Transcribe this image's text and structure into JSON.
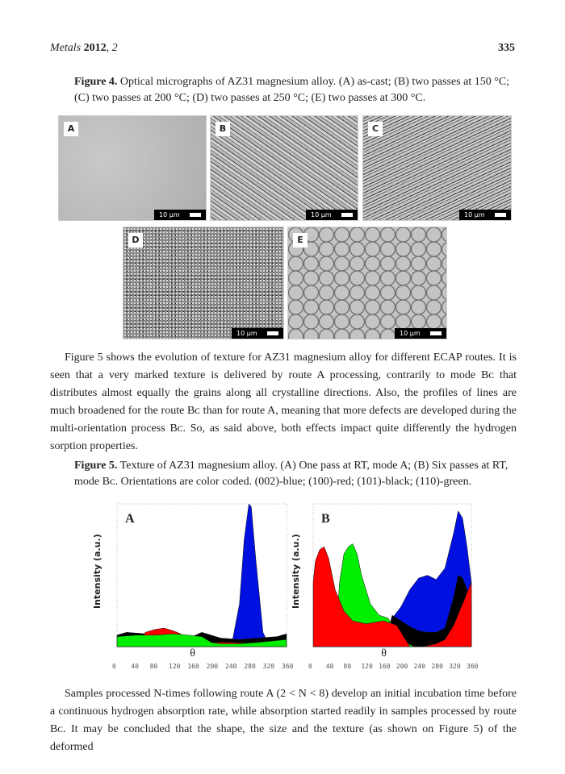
{
  "header": {
    "journal": "Metals",
    "year": "2012",
    "volume": "2",
    "page": "335"
  },
  "figure4": {
    "caption_label": "Figure 4.",
    "caption_text": " Optical micrographs of AZ31 magnesium alloy. (A) as-cast; (B) two passes at 150 °C; (C) two passes at 200 °C; (D) two passes at 250 °C; (E) two passes at 300 °C.",
    "panels": [
      {
        "label": "A",
        "scale": "10 µm"
      },
      {
        "label": "B",
        "scale": "10 µm"
      },
      {
        "label": "C",
        "scale": "10 µm"
      },
      {
        "label": "D",
        "scale": "10 µm"
      },
      {
        "label": "E",
        "scale": "10 µm"
      }
    ]
  },
  "paragraph1": "Figure 5 shows the evolution of texture for AZ31 magnesium alloy for different ECAP routes. It is seen that a very marked texture is delivered by route A processing, contrarily to mode Bᴄ that distributes almost equally the grains along all crystalline directions. Also, the profiles of lines are much broadened for the route Bᴄ than for route A, meaning that more defects are developed during the multi-orientation process Bᴄ. So, as said above, both effects impact quite differently the hydrogen sorption properties.",
  "figure5": {
    "caption_label": "Figure 5.",
    "caption_text": " Texture of AZ31 magnesium alloy. (A) One pass at RT, mode A; (B) Six passes at RT, mode Bᴄ. Orientations are color coded. (002)-blue; (100)-red; (101)-black; (110)-green."
  },
  "chart_data": [
    {
      "type": "area",
      "panel_label": "A",
      "xlabel": "θ",
      "ylabel": "Intensity (a.u.)",
      "xlim": [
        0,
        360
      ],
      "ylim": [
        0,
        100
      ],
      "x_ticks": [
        "0",
        "40",
        "80",
        "120",
        "160",
        "200",
        "240",
        "280",
        "320",
        "360"
      ],
      "series": [
        {
          "color": "#0010e0",
          "x": [
            0,
            230,
            245,
            260,
            270,
            280,
            285,
            295,
            310,
            325,
            360
          ],
          "y": [
            0,
            0,
            4,
            30,
            75,
            100,
            98,
            60,
            10,
            0,
            0
          ]
        },
        {
          "color": "#000000",
          "x": [
            0,
            20,
            60,
            120,
            160,
            180,
            220,
            260,
            300,
            340,
            360
          ],
          "y": [
            8,
            10,
            9,
            8,
            7,
            10,
            6,
            5,
            6,
            7,
            9
          ]
        },
        {
          "color": "#ff0000",
          "x": [
            0,
            45,
            60,
            80,
            100,
            120,
            135,
            150,
            200,
            240,
            300,
            360
          ],
          "y": [
            0,
            0,
            10,
            12,
            13,
            11,
            9,
            0,
            3,
            3,
            2,
            0
          ]
        },
        {
          "color": "#00ee00",
          "x": [
            0,
            40,
            80,
            120,
            150,
            180,
            200,
            220,
            260,
            300,
            360
          ],
          "y": [
            7,
            8,
            8,
            9,
            8,
            7,
            3,
            2,
            2,
            3,
            5
          ]
        }
      ]
    },
    {
      "type": "area",
      "panel_label": "B",
      "xlabel": "θ",
      "ylabel": "Intensity (a.u.)",
      "xlim": [
        0,
        360
      ],
      "ylim": [
        0,
        100
      ],
      "x_ticks": [
        "0",
        "40",
        "80",
        "120",
        "160",
        "200",
        "240",
        "280",
        "320",
        "360"
      ],
      "series": [
        {
          "color": "#0010e0",
          "x": [
            0,
            160,
            180,
            200,
            220,
            240,
            260,
            280,
            300,
            320,
            330,
            340,
            350,
            360
          ],
          "y": [
            0,
            0,
            20,
            28,
            40,
            48,
            50,
            47,
            55,
            80,
            95,
            90,
            70,
            45
          ]
        },
        {
          "color": "#000000",
          "x": [
            0,
            160,
            180,
            200,
            220,
            240,
            260,
            280,
            300,
            320,
            330,
            340,
            350,
            360
          ],
          "y": [
            0,
            0,
            22,
            18,
            14,
            11,
            10,
            10,
            13,
            35,
            50,
            48,
            40,
            30
          ]
        },
        {
          "color": "#00ee00",
          "x": [
            0,
            50,
            60,
            70,
            80,
            90,
            100,
            110,
            130,
            150,
            170,
            190,
            210,
            230,
            360
          ],
          "y": [
            0,
            0,
            45,
            65,
            70,
            72,
            65,
            50,
            30,
            22,
            20,
            10,
            3,
            0,
            0
          ]
        },
        {
          "color": "#ff0000",
          "x": [
            0,
            5,
            15,
            25,
            35,
            50,
            70,
            90,
            120,
            160,
            190,
            210,
            220,
            250,
            280,
            300,
            320,
            340,
            360
          ],
          "y": [
            45,
            60,
            68,
            70,
            62,
            40,
            25,
            18,
            16,
            18,
            15,
            5,
            0,
            0,
            2,
            5,
            15,
            30,
            45
          ]
        }
      ]
    }
  ],
  "paragraph2": "Samples processed N-times following route A (2 < N < 8) develop an initial incubation time before a continuous hydrogen absorption rate, while absorption started readily in samples processed by route Bᴄ. It may be concluded that the shape, the size and the texture (as shown on Figure 5) of the deformed"
}
